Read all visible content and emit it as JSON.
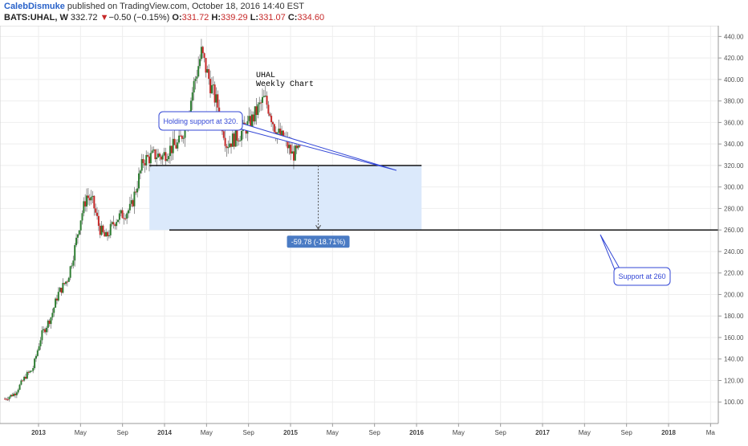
{
  "header": {
    "author": "CalebDismuke",
    "published_text": "published on TradingView.com, October 18, 2016 14:40 EST",
    "symbol": "BATS:UHAL, W",
    "last": "332.72",
    "change_arrow": "▼",
    "change": "−0.50 (−0.15%)",
    "o_label": "O:",
    "o": "331.72",
    "h_label": "H:",
    "h": "339.29",
    "l_label": "L:",
    "l": "331.07",
    "c_label": "C:",
    "c": "334.60"
  },
  "colors": {
    "up": "#2e7d32",
    "down": "#c62828",
    "annotation": "#3347d6",
    "range_fill": "#dbe9fb",
    "measure_badge": "#4a7bc4"
  },
  "chart_data": {
    "type": "candlestick",
    "title": "UHAL\nWeekly Chart",
    "title_lines": [
      "UHAL",
      "Weekly Chart"
    ],
    "ylim": [
      80,
      450
    ],
    "y_ticks": [
      100,
      120,
      140,
      160,
      180,
      200,
      220,
      240,
      260,
      280,
      300,
      320,
      340,
      360,
      380,
      400,
      420,
      440
    ],
    "y_tick_labels": [
      "100.00",
      "120.00",
      "140.00",
      "160.00",
      "180.00",
      "200.00",
      "220.00",
      "240.00",
      "260.00",
      "280.00",
      "300.00",
      "320.00",
      "340.00",
      "360.00",
      "380.00",
      "400.00",
      "420.00",
      "440.00"
    ],
    "x_labels": [
      "2013",
      "May",
      "Sep",
      "2014",
      "May",
      "Sep",
      "2015",
      "May",
      "Sep",
      "2016",
      "May",
      "Sep",
      "2017",
      "May",
      "Sep",
      "2018",
      "Ma"
    ],
    "x_label_bold": [
      true,
      false,
      false,
      true,
      false,
      false,
      true,
      false,
      false,
      true,
      false,
      false,
      true,
      false,
      false,
      true,
      false
    ],
    "price_path": [
      [
        0,
        103
      ],
      [
        0.08,
        108
      ],
      [
        0.17,
        125
      ],
      [
        0.22,
        130
      ],
      [
        0.29,
        162
      ],
      [
        0.37,
        180
      ],
      [
        0.42,
        200
      ],
      [
        0.5,
        215
      ],
      [
        0.55,
        240
      ],
      [
        0.6,
        270
      ],
      [
        0.65,
        292
      ],
      [
        0.7,
        285
      ],
      [
        0.75,
        262
      ],
      [
        0.8,
        252
      ],
      [
        0.88,
        270
      ],
      [
        1.0,
        280
      ],
      [
        1.1,
        325
      ],
      [
        1.2,
        330
      ],
      [
        1.25,
        328
      ],
      [
        1.3,
        335
      ],
      [
        1.38,
        340
      ],
      [
        1.44,
        360
      ],
      [
        1.5,
        395
      ],
      [
        1.56,
        425
      ],
      [
        1.64,
        392
      ],
      [
        1.7,
        372
      ],
      [
        1.76,
        340
      ],
      [
        1.82,
        345
      ],
      [
        1.87,
        350
      ],
      [
        1.95,
        360
      ],
      [
        2.02,
        375
      ],
      [
        2.06,
        382
      ],
      [
        2.1,
        372
      ],
      [
        2.15,
        352
      ],
      [
        2.23,
        342
      ],
      [
        2.28,
        330
      ],
      [
        2.34,
        333
      ]
    ],
    "support_lines": [
      320,
      260
    ],
    "range_box": {
      "from": 320,
      "to": 260
    },
    "measure_label": "-59.78 (-18.71%)",
    "annotations": [
      {
        "text": "Holding support at 320."
      },
      {
        "text": "Support at 260"
      }
    ]
  }
}
